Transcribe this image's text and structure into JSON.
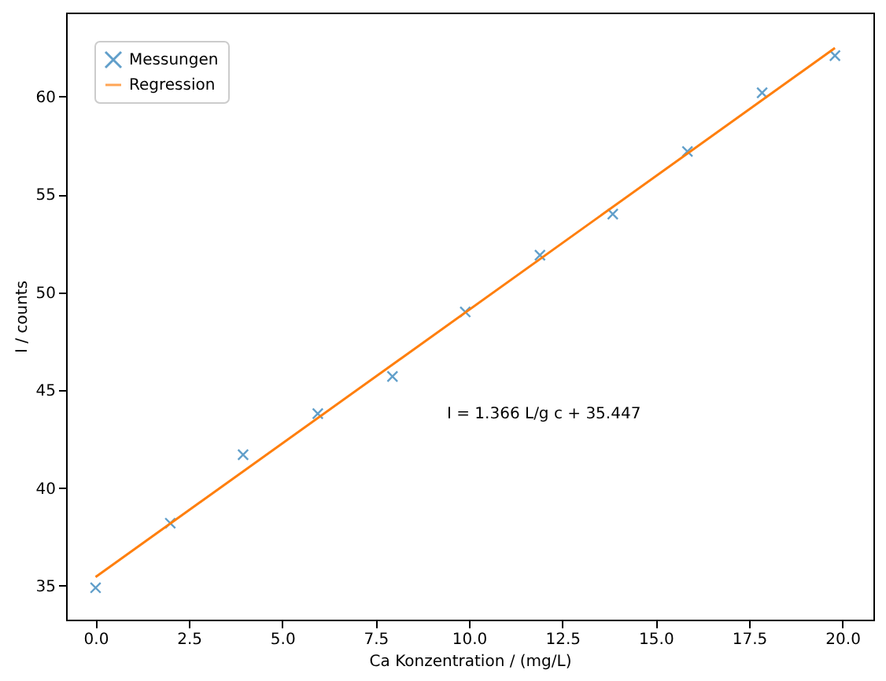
{
  "chart_data": {
    "type": "scatter",
    "xlabel": "Ca Konzentration / (mg/L)",
    "ylabel": "I / counts",
    "xlim": [
      -0.79,
      20.83
    ],
    "ylim": [
      33.27,
      64.3
    ],
    "xticks": [
      {
        "value": 0,
        "label": "0.0"
      },
      {
        "value": 2.5,
        "label": "2.5"
      },
      {
        "value": 5,
        "label": "5.0"
      },
      {
        "value": 7.5,
        "label": "7.5"
      },
      {
        "value": 10,
        "label": "10.0"
      },
      {
        "value": 12.5,
        "label": "12.5"
      },
      {
        "value": 15,
        "label": "15.0"
      },
      {
        "value": 17.5,
        "label": "17.5"
      },
      {
        "value": 20,
        "label": "20.0"
      }
    ],
    "yticks": [
      35,
      40,
      45,
      50,
      55,
      60
    ],
    "legend": "top left",
    "grid": false,
    "annotations": [
      "I = 1.366 L/g c + 35.447"
    ],
    "series": [
      {
        "name": "Messungen",
        "marker": "cross",
        "color": "#1f77b4",
        "x": [
          0,
          2,
          3.95,
          5.95,
          7.95,
          9.9,
          11.9,
          13.85,
          15.85,
          17.85,
          19.8
        ],
        "values": [
          34.9,
          38.2,
          41.7,
          43.8,
          45.7,
          49.0,
          51.9,
          54.0,
          57.2,
          60.2,
          62.1
        ]
      },
      {
        "name": "Regression",
        "type": "line",
        "line_style": "solid",
        "color": "#ff7f0e",
        "x": [
          0,
          19.8
        ],
        "values": [
          35.45,
          62.49
        ]
      }
    ]
  }
}
